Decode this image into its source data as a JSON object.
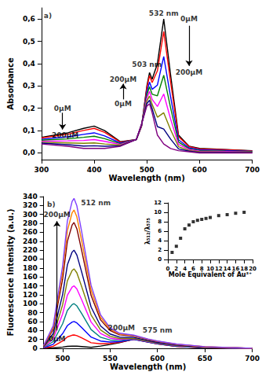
{
  "chart_data": [
    {
      "type": "line",
      "x_label": "Wavelength (nm)",
      "y_label": "Absorbance",
      "x": [
        300,
        350,
        380,
        400,
        420,
        450,
        480,
        490,
        500,
        505,
        510,
        520,
        532,
        545,
        560,
        580,
        600,
        650,
        700
      ],
      "xlim": [
        300,
        700
      ],
      "xticks": [
        300,
        400,
        500,
        600,
        700
      ],
      "ylim": [
        -0.03,
        0.65
      ],
      "yticks": [
        {
          "value": 0,
          "label": "0,0"
        },
        {
          "value": 0.1,
          "label": "0,1"
        },
        {
          "value": 0.2,
          "label": "0,2"
        },
        {
          "value": 0.3,
          "label": "0,3"
        },
        {
          "value": 0.4,
          "label": "0,4"
        },
        {
          "value": 0.5,
          "label": "0,5"
        },
        {
          "value": 0.6,
          "label": "0,6"
        }
      ],
      "grid": false,
      "series": [
        {
          "color": "#000000",
          "values": [
            0.07,
            0.09,
            0.11,
            0.12,
            0.1,
            0.05,
            0.06,
            0.12,
            0.3,
            0.36,
            0.33,
            0.4,
            0.6,
            0.35,
            0.08,
            0.03,
            0.02,
            0.015,
            0.01
          ]
        },
        {
          "color": "#ff0000",
          "values": [
            0.067,
            0.084,
            0.101,
            0.11,
            0.092,
            0.048,
            0.06,
            0.121,
            0.291,
            0.346,
            0.315,
            0.368,
            0.544,
            0.317,
            0.073,
            0.028,
            0.018,
            0.014,
            0.009
          ]
        },
        {
          "color": "#0000ff",
          "values": [
            0.061,
            0.072,
            0.083,
            0.09,
            0.076,
            0.044,
            0.06,
            0.123,
            0.273,
            0.318,
            0.285,
            0.304,
            0.432,
            0.251,
            0.059,
            0.023,
            0.014,
            0.011,
            0.007
          ]
        },
        {
          "color": "#008000",
          "values": [
            0.057,
            0.063,
            0.07,
            0.075,
            0.064,
            0.041,
            0.06,
            0.125,
            0.26,
            0.297,
            0.263,
            0.256,
            0.348,
            0.202,
            0.049,
            0.019,
            0.011,
            0.008,
            0.006
          ]
        },
        {
          "color": "#ff00ff",
          "values": [
            0.052,
            0.054,
            0.056,
            0.06,
            0.052,
            0.038,
            0.06,
            0.126,
            0.246,
            0.276,
            0.24,
            0.208,
            0.264,
            0.152,
            0.038,
            0.015,
            0.008,
            0.006,
            0.004
          ]
        },
        {
          "color": "#808000",
          "values": [
            0.048,
            0.045,
            0.043,
            0.045,
            0.04,
            0.035,
            0.06,
            0.128,
            0.233,
            0.255,
            0.218,
            0.16,
            0.18,
            0.104,
            0.028,
            0.011,
            0.005,
            0.004,
            0.003
          ]
        },
        {
          "color": "#000080",
          "values": [
            0.044,
            0.037,
            0.031,
            0.032,
            0.03,
            0.032,
            0.06,
            0.129,
            0.221,
            0.236,
            0.198,
            0.118,
            0.107,
            0.062,
            0.018,
            0.008,
            0.002,
            0.002,
            0.001
          ]
        },
        {
          "color": "#800080",
          "values": [
            0.04,
            0.03,
            0.02,
            0.02,
            0.02,
            0.03,
            0.06,
            0.13,
            0.21,
            0.22,
            0.18,
            0.08,
            0.04,
            0.02,
            0.01,
            0.005,
            0.0,
            0.0,
            0.0
          ]
        }
      ],
      "annotations": [
        {
          "text": "a)",
          "x": 312,
          "y": 0.615
        },
        {
          "text": "532 nm",
          "x": 532,
          "y": 0.625
        },
        {
          "text": "503 nm",
          "x": 500,
          "y": 0.395
        },
        {
          "text": "0μM",
          "x": 580,
          "y": 0.6
        },
        {
          "text": "200μM",
          "x": 580,
          "y": 0.36
        },
        {
          "text": "0μM",
          "x": 340,
          "y": 0.2
        },
        {
          "text": "200μM",
          "x": 345,
          "y": 0.08
        },
        {
          "text": "0μM",
          "x": 455,
          "y": 0.22
        },
        {
          "text": "200μM",
          "x": 455,
          "y": 0.33
        }
      ],
      "arrows": [
        {
          "from": [
            580,
            0.57
          ],
          "to": [
            580,
            0.39
          ]
        },
        {
          "from": [
            340,
            0.18
          ],
          "to": [
            340,
            0.105
          ]
        },
        {
          "from": [
            455,
            0.24
          ],
          "to": [
            455,
            0.31
          ]
        }
      ]
    },
    {
      "type": "line",
      "x_label": "Wavelength (nm)",
      "y_label": "Fluorescence Intensity (a.u.)",
      "x": [
        480,
        490,
        500,
        505,
        510,
        512,
        515,
        520,
        530,
        540,
        550,
        560,
        575,
        590,
        600,
        620,
        650,
        700
      ],
      "xlim": [
        480,
        700
      ],
      "xticks": [
        500,
        550,
        600,
        650,
        700
      ],
      "ylim": [
        0,
        340
      ],
      "yticks": [
        0,
        20,
        40,
        60,
        80,
        100,
        120,
        140,
        160,
        180,
        200,
        220,
        240,
        260,
        280,
        300,
        320,
        340
      ],
      "grid": false,
      "series": [
        {
          "color": "#000000",
          "values": [
            0.1,
            0.8,
            2.8,
            4.3,
            4.9,
            5,
            4.8,
            3.9,
            2.1,
            5,
            8.6,
            12.5,
            20.4,
            14.3,
            10.2,
            4.1,
            1,
            0
          ]
        },
        {
          "color": "#ff0000",
          "values": [
            0.6,
            4.5,
            16.5,
            25.5,
            29.4,
            30,
            28.5,
            23.4,
            12.6,
            10.2,
            11.1,
            13.5,
            20.1,
            14.1,
            10.2,
            4.4,
            1.2,
            0
          ]
        },
        {
          "color": "#0000ff",
          "values": [
            1.2,
            9,
            33,
            51,
            58.8,
            60,
            57,
            46.8,
            25.2,
            16.4,
            14.2,
            15,
            20.2,
            14.2,
            10.4,
            4.7,
            1.4,
            0
          ]
        },
        {
          "color": "#008080",
          "values": [
            2,
            15,
            55,
            85,
            98,
            100,
            95,
            78,
            42,
            24.8,
            18.6,
            17.4,
            21,
            14.8,
            11,
            5.3,
            1.7,
            0
          ]
        },
        {
          "color": "#ff00ff",
          "values": [
            2.8,
            21,
            77,
            119,
            137.2,
            140,
            133,
            109.2,
            58.8,
            33.2,
            23,
            19.8,
            21.8,
            15.4,
            11.6,
            5.9,
            2,
            0
          ]
        },
        {
          "color": "#808000",
          "values": [
            3.6,
            26.7,
            97.9,
            151.3,
            174.4,
            178,
            169.1,
            138.8,
            74.8,
            41.2,
            27.1,
            22,
            22.5,
            15.9,
            12.1,
            6.5,
            2.3,
            0
          ]
        },
        {
          "color": "#000080",
          "values": [
            4.4,
            33,
            121,
            187,
            215.6,
            220,
            209,
            171.6,
            92.4,
            50.2,
            32.2,
            25.2,
            24.4,
            17.3,
            13.3,
            7.3,
            2.7,
            0
          ]
        },
        {
          "color": "#800000",
          "values": [
            5.6,
            42.3,
            155.1,
            239.7,
            276.4,
            282,
            267.9,
            220,
            118.4,
            63.6,
            39.9,
            30.2,
            27.7,
            19.7,
            15.3,
            8.7,
            3.2,
            0
          ]
        },
        {
          "color": "#ff8000",
          "values": [
            6.2,
            46.5,
            170.5,
            263.5,
            303.8,
            310,
            294.5,
            241.8,
            130.2,
            69.6,
            43.1,
            32.1,
            28.7,
            20.4,
            15.9,
            9.2,
            3.5,
            0
          ]
        },
        {
          "color": "#7f3fff",
          "values": [
            6.7,
            50.4,
            184.8,
            285.6,
            329.3,
            336,
            319.2,
            262.1,
            141.1,
            75.1,
            46.1,
            33.8,
            29.5,
            21,
            16.4,
            9.6,
            3.7,
            0
          ]
        }
      ],
      "annotations": [
        {
          "text": "b)",
          "x": 488,
          "y": 322
        },
        {
          "text": "512 nm",
          "x": 535,
          "y": 326
        },
        {
          "text": "200μM",
          "x": 494,
          "y": 300
        },
        {
          "text": "0μM",
          "x": 494,
          "y": 22
        },
        {
          "text": "200μM",
          "x": 562,
          "y": 45
        },
        {
          "text": "575 nm",
          "x": 600,
          "y": 40
        }
      ],
      "arrows": [
        {
          "from": [
            494,
            40
          ],
          "to": [
            494,
            285
          ]
        }
      ]
    },
    {
      "type": "scatter",
      "marker": "square",
      "x_label": "Mole Equivalent of Au³⁺",
      "y_label": "λ₅₁₂/λ₅₇₅",
      "x": [
        1,
        2,
        3,
        4,
        5,
        6,
        7,
        8,
        9,
        10,
        12,
        14,
        16,
        18
      ],
      "xlim": [
        0,
        20
      ],
      "xticks": [
        0,
        2,
        4,
        6,
        8,
        10,
        12,
        14,
        16,
        18,
        20
      ],
      "ylim": [
        0,
        12
      ],
      "yticks": [
        0,
        2,
        4,
        6,
        8,
        10,
        12
      ],
      "grid": false,
      "series": [
        {
          "color": "#000000",
          "values": [
            1.5,
            2.8,
            4.5,
            6.5,
            7.3,
            8.0,
            8.3,
            8.5,
            8.7,
            8.9,
            9.3,
            9.5,
            9.8,
            10.0
          ]
        }
      ]
    }
  ]
}
